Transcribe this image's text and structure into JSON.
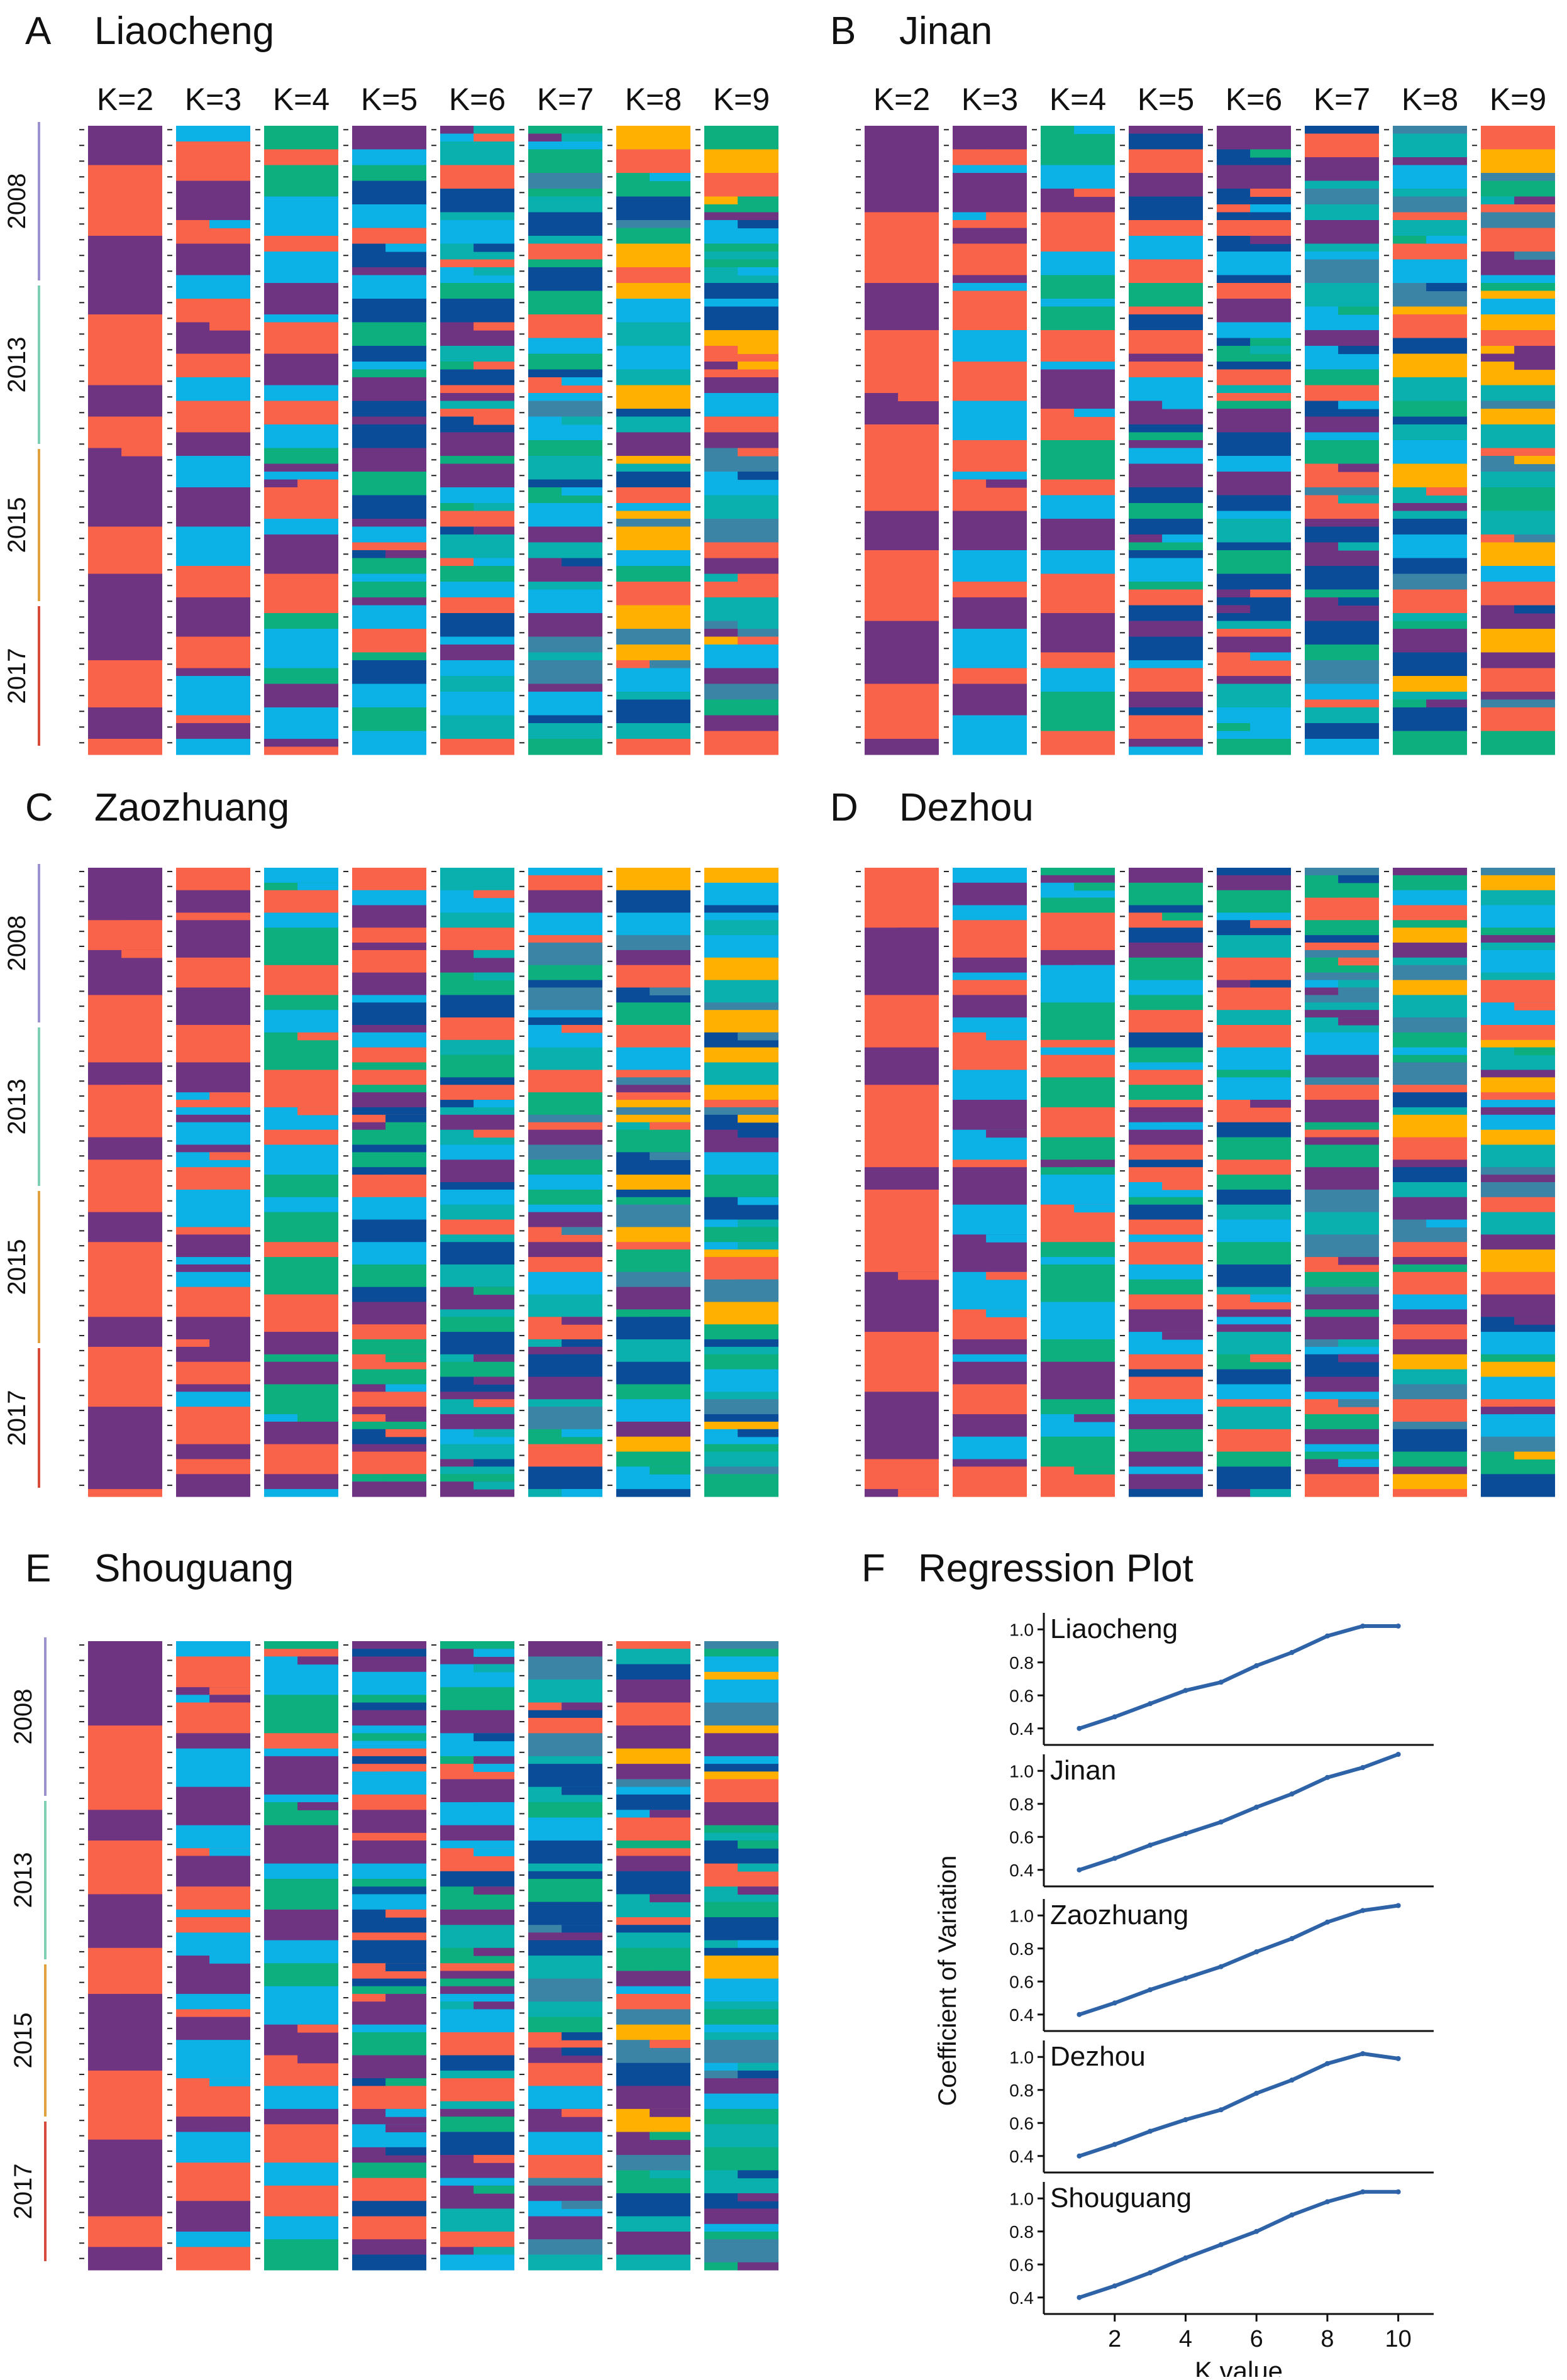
{
  "figure": {
    "k_labels": [
      "K=2",
      "K=3",
      "K=4",
      "K=5",
      "K=6",
      "K=7",
      "K=8",
      "K=9"
    ],
    "year_labels": [
      "2008",
      "2013",
      "2015",
      "2017"
    ],
    "year_colors": [
      "#9a93cf",
      "#7fcfb4",
      "#e0a23e",
      "#d84a3a"
    ],
    "palette": {
      "purple": "#6e3482",
      "orange": "#f9634a",
      "cyan": "#0cb1e6",
      "green": "#0daf7f",
      "navy": "#0b4c99",
      "teal": "#0ab0ad",
      "steel": "#3b84a6",
      "gold": "#ffb000"
    }
  },
  "panels": [
    {
      "letter": "A",
      "name": "Liaocheng",
      "show_k_labels": true,
      "rows": 80
    },
    {
      "letter": "B",
      "name": "Jinan",
      "show_k_labels": true,
      "rows": 80
    },
    {
      "letter": "C",
      "name": "Zaozhuang",
      "show_k_labels": false,
      "rows": 84
    },
    {
      "letter": "D",
      "name": "Dezhou",
      "show_k_labels": false,
      "rows": 84
    },
    {
      "letter": "E",
      "name": "Shouguang",
      "show_k_labels": false,
      "rows": 82
    }
  ],
  "regression": {
    "letter": "F",
    "title": "Regression Plot",
    "ylabel": "Coefficient of Variation",
    "xlabel": "K value",
    "x_ticks": [
      "2",
      "4",
      "6",
      "8",
      "10"
    ],
    "y_ticks": [
      "0.4",
      "0.6",
      "0.8",
      "1.0"
    ]
  },
  "chart_data": {
    "type": "line",
    "xlabel": "K value",
    "ylabel": "Coefficient of Variation",
    "xlim": [
      0,
      11
    ],
    "ylim": [
      0.3,
      1.1
    ],
    "x": [
      1,
      2,
      3,
      4,
      5,
      6,
      7,
      8,
      9,
      10
    ],
    "series": [
      {
        "name": "Liaocheng",
        "values": [
          0.4,
          0.47,
          0.55,
          0.63,
          0.68,
          0.78,
          0.86,
          0.96,
          1.02,
          1.02
        ]
      },
      {
        "name": "Jinan",
        "values": [
          0.4,
          0.47,
          0.55,
          0.62,
          0.69,
          0.78,
          0.86,
          0.96,
          1.02,
          1.1
        ]
      },
      {
        "name": "Zaozhuang",
        "values": [
          0.4,
          0.47,
          0.55,
          0.62,
          0.69,
          0.78,
          0.86,
          0.96,
          1.03,
          1.06
        ]
      },
      {
        "name": "Dezhou",
        "values": [
          0.4,
          0.47,
          0.55,
          0.62,
          0.68,
          0.78,
          0.86,
          0.96,
          1.02,
          0.99
        ]
      },
      {
        "name": "Shouguang",
        "values": [
          0.4,
          0.47,
          0.55,
          0.64,
          0.72,
          0.8,
          0.9,
          0.98,
          1.04,
          1.04
        ]
      }
    ]
  }
}
